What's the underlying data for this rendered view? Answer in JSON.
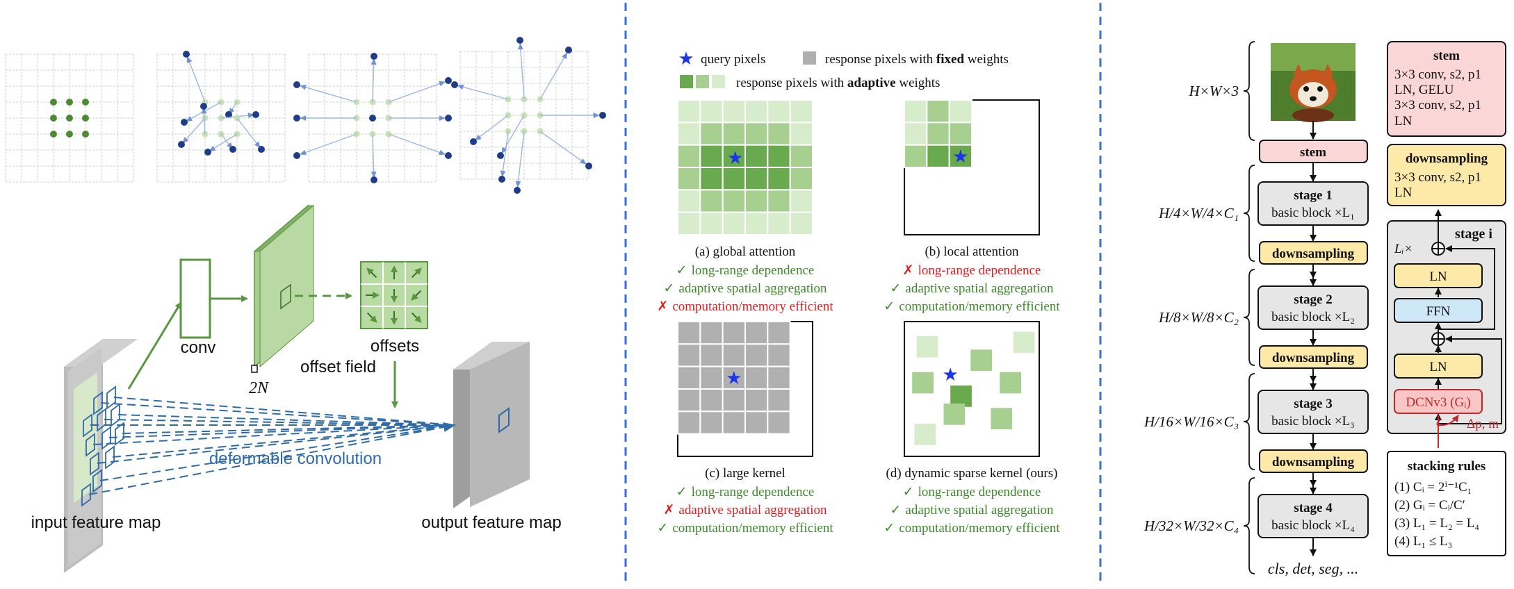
{
  "colors": {
    "green_dark": "#5a9640",
    "green_mid": "#a7cf8f",
    "green_light": "#d6eccb",
    "green_text": "#3d8a2a",
    "red_text": "#e41a1c",
    "blue_dot": "#1f3c88",
    "blue_line": "#2e6ba8",
    "query_star": "#1a36e6",
    "stem_fill": "#fbd6d6",
    "downsample_fill": "#fde9a8",
    "stage_fill": "#e6e6e6",
    "ffn_fill": "#cfe8f8",
    "dcn_fill": "#f9c6c6",
    "divider": "#3a6fcf"
  },
  "left_panel": {
    "conv_label": "conv",
    "offset_field_label": "offset field",
    "offset_channels": "2N",
    "offsets_label": "offsets",
    "deformable_label": "deformable convolution",
    "input_label": "input feature map",
    "output_label": "output feature map"
  },
  "middle_panel": {
    "legend": {
      "query": "query pixels",
      "fixed_pre": "response pixels with ",
      "fixed_bold": "fixed",
      "fixed_post": " weights",
      "adaptive_pre": "response pixels with ",
      "adaptive_bold": "adaptive",
      "adaptive_post": " weights"
    },
    "panels": [
      {
        "title": "(a) global attention",
        "props": [
          {
            "mark": "✓",
            "text": "long-range dependence",
            "ok": true
          },
          {
            "mark": "✓",
            "text": "adaptive spatial aggregation",
            "ok": true
          },
          {
            "mark": "✗",
            "text": "computation/memory efficient",
            "ok": false
          }
        ]
      },
      {
        "title": "(b) local attention",
        "props": [
          {
            "mark": "✗",
            "text": "long-range dependence",
            "ok": false
          },
          {
            "mark": "✓",
            "text": "adaptive spatial aggregation",
            "ok": true
          },
          {
            "mark": "✓",
            "text": "computation/memory efficient",
            "ok": true
          }
        ]
      },
      {
        "title": "(c) large kernel",
        "props": [
          {
            "mark": "✓",
            "text": "long-range dependence",
            "ok": true
          },
          {
            "mark": "✗",
            "text": "adaptive spatial aggregation",
            "ok": false
          },
          {
            "mark": "✓",
            "text": "computation/memory efficient",
            "ok": true
          }
        ]
      },
      {
        "title": "(d) dynamic sparse kernel (ours)",
        "props": [
          {
            "mark": "✓",
            "text": "long-range dependence",
            "ok": true
          },
          {
            "mark": "✓",
            "text": "adaptive spatial aggregation",
            "ok": true
          },
          {
            "mark": "✓",
            "text": "computation/memory efficient",
            "ok": true
          }
        ]
      }
    ]
  },
  "right_panel": {
    "dims": [
      "H×W×3",
      "H/4×W/4×C₁",
      "H/8×W/8×C₂",
      "H/16×W/16×C₃",
      "H/32×W/32×C₄"
    ],
    "stem_label": "stem",
    "stages": [
      {
        "name": "stage 1",
        "block": "basic block ×L₁"
      },
      {
        "name": "stage 2",
        "block": "basic block ×L₂"
      },
      {
        "name": "stage 3",
        "block": "basic block ×L₃"
      },
      {
        "name": "stage 4",
        "block": "basic block ×L₄"
      }
    ],
    "downsampling_label": "downsampling",
    "output_tasks": "cls, det, seg, ...",
    "stem_box": {
      "title": "stem",
      "lines": [
        "3×3 conv, s2, p1",
        "LN, GELU",
        "3×3 conv, s2, p1",
        "LN"
      ]
    },
    "down_box": {
      "title": "downsampling",
      "lines": [
        "3×3 conv, s2, p1",
        "LN"
      ]
    },
    "stage_box": {
      "title": "stage i",
      "repeat": "Lᵢ×",
      "ln": "LN",
      "ffn": "FFN",
      "dcn": "DCNv3 (Gᵢ)",
      "offset": "Δp, m"
    },
    "rules": {
      "title": "stacking rules",
      "lines": [
        "(1) Cᵢ = 2ⁱ⁻¹C₁",
        "(2) Gᵢ = Cᵢ/C′",
        "(3) L₁ = L₂ = L₄",
        "(4) L₁ ≤ L₃"
      ]
    }
  }
}
